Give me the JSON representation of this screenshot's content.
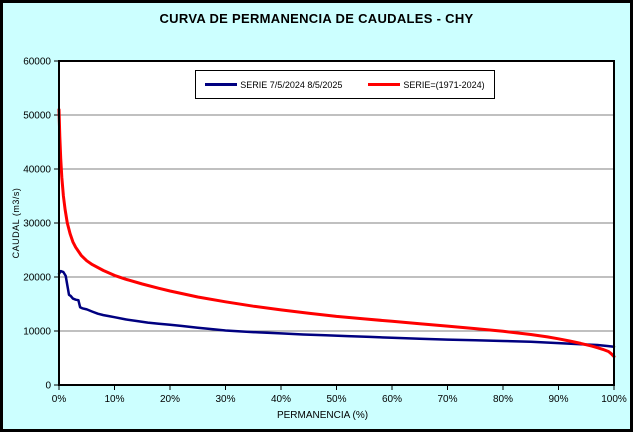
{
  "title": "CURVA DE PERMANENCIA DE CAUDALES - CHY",
  "colors": {
    "background": "#CCFFFF",
    "plot_bg": "#FFFFFF",
    "grid": "#808080",
    "axis": "#000000",
    "serie_2024_2025": "#000080",
    "serie_1971_2024": "#FF0000"
  },
  "legend": {
    "items": [
      {
        "label": "SERIE 7/5/2024 8/5/2025",
        "color": "#000080"
      },
      {
        "label": "SERIE=(1971-2024)",
        "color": "#FF0000"
      }
    ]
  },
  "chart_data": {
    "type": "line",
    "title": "CURVA DE PERMANENCIA DE CAUDALES - CHY",
    "xlabel": "PERMANENCIA (%)",
    "ylabel": "CAUDAL (m3/s)",
    "xlim": [
      0,
      100
    ],
    "ylim": [
      0,
      60000
    ],
    "x_ticks": [
      0,
      10,
      20,
      30,
      40,
      50,
      60,
      70,
      80,
      90,
      100
    ],
    "x_tick_labels": [
      "0%",
      "10%",
      "20%",
      "30%",
      "40%",
      "50%",
      "60%",
      "70%",
      "80%",
      "90%",
      "100%"
    ],
    "y_ticks": [
      0,
      10000,
      20000,
      30000,
      40000,
      50000,
      60000
    ],
    "y_tick_labels": [
      "0",
      "10000",
      "20000",
      "30000",
      "40000",
      "50000",
      "60000"
    ],
    "grid": "horizontal",
    "legend_position": "top-center",
    "series": [
      {
        "name": "SERIE 7/5/2024 8/5/2025",
        "color": "#000080",
        "width": 2.5,
        "x": [
          0,
          0.3,
          0.8,
          1.2,
          1.5,
          1.8,
          2.1,
          2.5,
          3,
          3.5,
          3.8,
          4.2,
          5,
          6,
          7,
          8,
          9,
          10,
          12,
          14,
          16,
          18,
          20,
          22,
          25,
          28,
          30,
          33,
          36,
          40,
          44,
          48,
          52,
          56,
          60,
          65,
          70,
          75,
          80,
          85,
          90,
          94,
          97,
          99,
          100
        ],
        "y": [
          20600,
          21100,
          20900,
          20200,
          18500,
          16700,
          16500,
          16000,
          15800,
          15700,
          14400,
          14200,
          14000,
          13600,
          13200,
          12950,
          12750,
          12550,
          12150,
          11850,
          11550,
          11350,
          11150,
          10950,
          10600,
          10300,
          10100,
          9900,
          9750,
          9550,
          9350,
          9200,
          9050,
          8900,
          8750,
          8550,
          8400,
          8300,
          8150,
          8000,
          7750,
          7550,
          7400,
          7200,
          7100
        ]
      },
      {
        "name": "SERIE=(1971-2024)",
        "color": "#FF0000",
        "width": 3,
        "x": [
          0,
          0.15,
          0.3,
          0.5,
          0.8,
          1.1,
          1.5,
          2,
          2.5,
          3,
          4,
          5,
          6,
          8,
          10,
          12,
          15,
          18,
          20,
          25,
          30,
          35,
          40,
          45,
          50,
          55,
          60,
          65,
          70,
          75,
          80,
          85,
          88,
          90,
          92,
          94,
          96,
          97,
          98,
          99,
          99.5,
          100
        ],
        "y": [
          51000,
          46000,
          42000,
          38500,
          35000,
          32500,
          30000,
          28000,
          26500,
          25500,
          24000,
          23000,
          22300,
          21200,
          20300,
          19600,
          18700,
          17900,
          17400,
          16300,
          15400,
          14600,
          13900,
          13300,
          12700,
          12250,
          11800,
          11350,
          10900,
          10450,
          9950,
          9350,
          8900,
          8550,
          8150,
          7700,
          7200,
          6900,
          6600,
          6200,
          5800,
          5250
        ]
      }
    ]
  }
}
